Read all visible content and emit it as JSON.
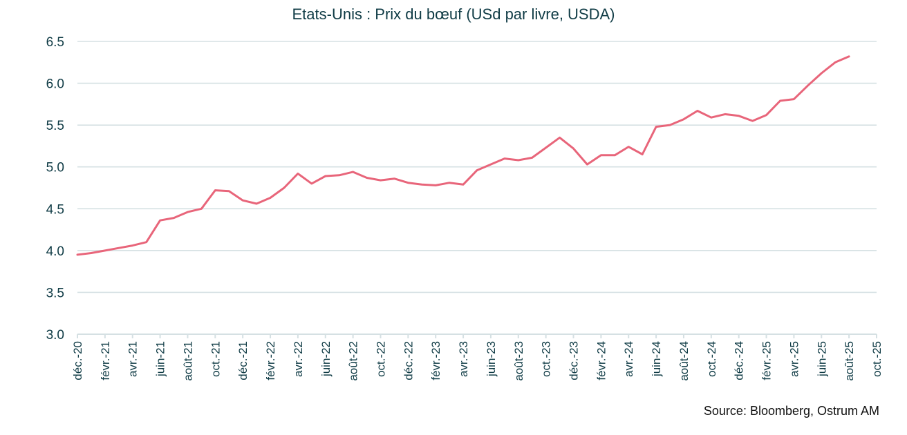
{
  "title": "Etats-Unis : Prix du bœuf (USd par livre, USDA)",
  "source": "Source: Bloomberg, Ostrum AM",
  "colors": {
    "line": "#e8657a",
    "grid": "#d5e0e3",
    "text": "#0f3b45"
  },
  "chart_data": {
    "type": "line",
    "title": "Etats-Unis : Prix du bœuf (USd par livre, USDA)",
    "xlabel": "",
    "ylabel": "",
    "ylim": [
      3.0,
      6.5
    ],
    "yticks": [
      "3.0",
      "3.5",
      "4.0",
      "4.5",
      "5.0",
      "5.5",
      "6.0",
      "6.5"
    ],
    "grid": true,
    "legend": null,
    "xtick_labels": [
      "déc.-20",
      "févr.-21",
      "avr.-21",
      "juin-21",
      "août-21",
      "oct.-21",
      "déc.-21",
      "févr.-22",
      "avr.-22",
      "juin-22",
      "août-22",
      "oct.-22",
      "déc.-22",
      "févr.-23",
      "avr.-23",
      "juin-23",
      "août-23",
      "oct.-23",
      "déc.-23",
      "févr.-24",
      "avr.-24",
      "juin-24",
      "août-24",
      "oct.-24",
      "déc.-24",
      "févr.-25",
      "avr.-25",
      "juin-25",
      "août-25",
      "oct.-25"
    ],
    "x": [
      "2020-12",
      "2021-01",
      "2021-02",
      "2021-03",
      "2021-04",
      "2021-05",
      "2021-06",
      "2021-07",
      "2021-08",
      "2021-09",
      "2021-10",
      "2021-11",
      "2021-12",
      "2022-01",
      "2022-02",
      "2022-03",
      "2022-04",
      "2022-05",
      "2022-06",
      "2022-07",
      "2022-08",
      "2022-09",
      "2022-10",
      "2022-11",
      "2022-12",
      "2023-01",
      "2023-02",
      "2023-03",
      "2023-04",
      "2023-05",
      "2023-06",
      "2023-07",
      "2023-08",
      "2023-09",
      "2023-10",
      "2023-11",
      "2023-12",
      "2024-01",
      "2024-02",
      "2024-03",
      "2024-04",
      "2024-05",
      "2024-06",
      "2024-07",
      "2024-08",
      "2024-09",
      "2024-10",
      "2024-11",
      "2024-12",
      "2025-01",
      "2025-02",
      "2025-03",
      "2025-04",
      "2025-05",
      "2025-06",
      "2025-07",
      "2025-08"
    ],
    "series": [
      {
        "name": "Prix du bœuf (USd/livre)",
        "values": [
          3.95,
          3.97,
          4.0,
          4.03,
          4.06,
          4.1,
          4.36,
          4.39,
          4.46,
          4.5,
          4.72,
          4.71,
          4.6,
          4.56,
          4.63,
          4.75,
          4.92,
          4.8,
          4.89,
          4.9,
          4.94,
          4.87,
          4.84,
          4.86,
          4.81,
          4.79,
          4.78,
          4.81,
          4.79,
          4.96,
          5.03,
          5.1,
          5.08,
          5.11,
          5.23,
          5.35,
          5.22,
          5.03,
          5.14,
          5.14,
          5.24,
          5.15,
          5.48,
          5.5,
          5.57,
          5.67,
          5.59,
          5.63,
          5.61,
          5.55,
          5.62,
          5.79,
          5.81,
          5.97,
          6.12,
          6.25,
          6.32
        ]
      }
    ]
  }
}
